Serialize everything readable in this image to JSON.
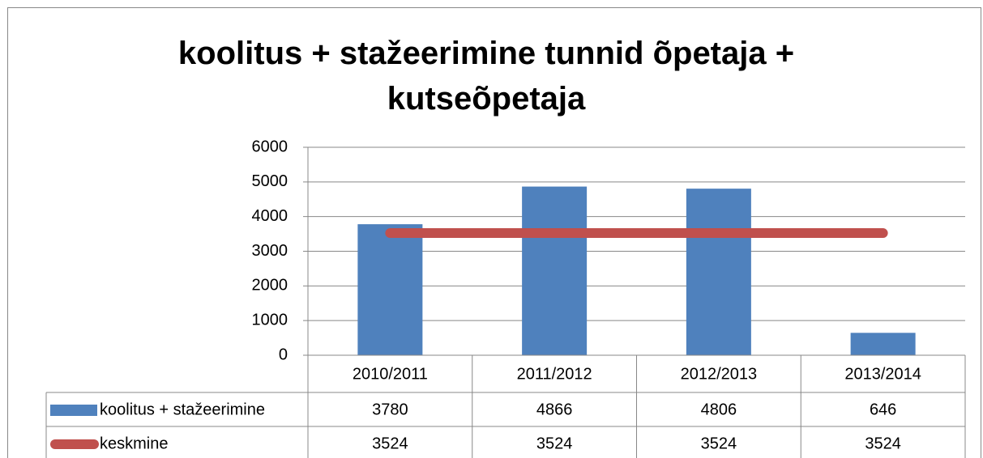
{
  "chart_data": {
    "type": "bar",
    "title": "koolitus + stažeerimine tunnid õpetaja + kutseõpetaja",
    "categories": [
      "2010/2011",
      "2011/2012",
      "2012/2013",
      "2013/2014"
    ],
    "series": [
      {
        "name": "koolitus + stažeerimine",
        "type": "bar",
        "color": "#4f81bd",
        "values": [
          3780,
          4866,
          4806,
          646
        ]
      },
      {
        "name": "keskmine",
        "type": "line",
        "color": "#c0504d",
        "values": [
          3524,
          3524,
          3524,
          3524
        ]
      }
    ],
    "ylim": [
      0,
      6000
    ],
    "yticks": [
      0,
      1000,
      2000,
      3000,
      4000,
      5000,
      6000
    ],
    "grid": true,
    "data_table": true
  }
}
